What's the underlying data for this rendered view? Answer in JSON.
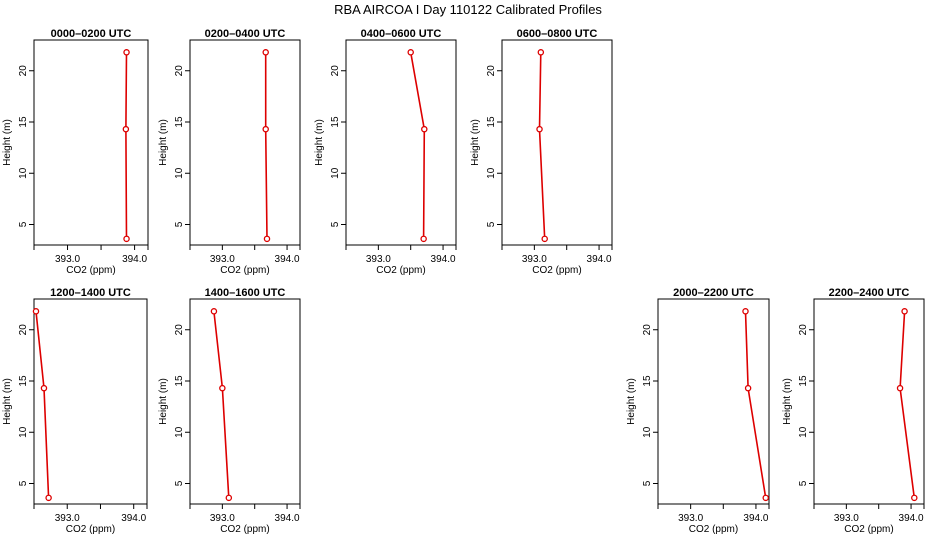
{
  "title": "RBA AIRCOA I  Day 110122  Calibrated Profiles",
  "chart_data": [
    {
      "type": "line",
      "title": "0000–0200 UTC",
      "xlabel": "CO2 (ppm)",
      "ylabel": "Height (m)",
      "xlim": [
        392.5,
        394.2
      ],
      "ylim": [
        3,
        23
      ],
      "x_ticks": [
        393.0,
        394.0
      ],
      "x_tick_labels": [
        "393.0",
        "394.0"
      ],
      "y_ticks": [
        5,
        10,
        15,
        20
      ],
      "grid": false,
      "series": [
        {
          "x": [
            393.88,
            393.87,
            393.88
          ],
          "y": [
            3.6,
            14.3,
            21.8
          ]
        }
      ]
    },
    {
      "type": "line",
      "title": "0200–0400 UTC",
      "xlabel": "CO2 (ppm)",
      "ylabel": "Height (m)",
      "xlim": [
        392.5,
        394.2
      ],
      "ylim": [
        3,
        23
      ],
      "x_ticks": [
        393.0,
        394.0
      ],
      "x_tick_labels": [
        "393.0",
        "394.0"
      ],
      "y_ticks": [
        5,
        10,
        15,
        20
      ],
      "grid": false,
      "series": [
        {
          "x": [
            393.69,
            393.67,
            393.67
          ],
          "y": [
            3.6,
            14.3,
            21.8
          ]
        }
      ]
    },
    {
      "type": "line",
      "title": "0400–0600 UTC",
      "xlabel": "CO2 (ppm)",
      "ylabel": "Height (m)",
      "xlim": [
        392.5,
        394.2
      ],
      "ylim": [
        3,
        23
      ],
      "x_ticks": [
        393.0,
        394.0
      ],
      "x_tick_labels": [
        "393.0",
        "394.0"
      ],
      "y_ticks": [
        5,
        10,
        15,
        20
      ],
      "grid": false,
      "series": [
        {
          "x": [
            393.7,
            393.71,
            393.5
          ],
          "y": [
            3.6,
            14.3,
            21.8
          ]
        }
      ]
    },
    {
      "type": "line",
      "title": "0600–0800 UTC",
      "xlabel": "CO2 (ppm)",
      "ylabel": "Height (m)",
      "xlim": [
        392.5,
        394.2
      ],
      "ylim": [
        3,
        23
      ],
      "x_ticks": [
        393.0,
        394.0
      ],
      "x_tick_labels": [
        "393.0",
        "394.0"
      ],
      "y_ticks": [
        5,
        10,
        15,
        20
      ],
      "grid": false,
      "series": [
        {
          "x": [
            393.16,
            393.08,
            393.1
          ],
          "y": [
            3.6,
            14.3,
            21.8
          ]
        }
      ]
    },
    {
      "type": "line",
      "title": "1200–1400 UTC",
      "xlabel": "CO2 (ppm)",
      "ylabel": "Height (m)",
      "xlim": [
        392.5,
        394.2
      ],
      "ylim": [
        3,
        23
      ],
      "x_ticks": [
        393.0,
        394.0
      ],
      "x_tick_labels": [
        "393.0",
        "394.0"
      ],
      "y_ticks": [
        5,
        10,
        15,
        20
      ],
      "grid": false,
      "series": [
        {
          "x": [
            392.72,
            392.65,
            392.53
          ],
          "y": [
            3.6,
            14.3,
            21.8
          ]
        }
      ]
    },
    {
      "type": "line",
      "title": "1400–1600 UTC",
      "xlabel": "CO2 (ppm)",
      "ylabel": "Height (m)",
      "xlim": [
        392.5,
        394.2
      ],
      "ylim": [
        3,
        23
      ],
      "x_ticks": [
        393.0,
        394.0
      ],
      "x_tick_labels": [
        "393.0",
        "394.0"
      ],
      "y_ticks": [
        5,
        10,
        15,
        20
      ],
      "grid": false,
      "series": [
        {
          "x": [
            393.1,
            393.0,
            392.87
          ],
          "y": [
            3.6,
            14.3,
            21.8
          ]
        }
      ]
    },
    {
      "type": "line",
      "title": "2000–2200 UTC",
      "xlabel": "CO2 (ppm)",
      "ylabel": "Height (m)",
      "xlim": [
        392.5,
        394.2
      ],
      "ylim": [
        3,
        23
      ],
      "x_ticks": [
        393.0,
        394.0
      ],
      "x_tick_labels": [
        "393.0",
        "394.0"
      ],
      "y_ticks": [
        5,
        10,
        15,
        20
      ],
      "grid": false,
      "series": [
        {
          "x": [
            394.15,
            393.88,
            393.84
          ],
          "y": [
            3.6,
            14.3,
            21.8
          ]
        }
      ]
    },
    {
      "type": "line",
      "title": "2200–2400 UTC",
      "xlabel": "CO2 (ppm)",
      "ylabel": "Height (m)",
      "xlim": [
        392.5,
        394.2
      ],
      "ylim": [
        3,
        23
      ],
      "x_ticks": [
        393.0,
        394.0
      ],
      "x_tick_labels": [
        "393.0",
        "394.0"
      ],
      "y_ticks": [
        5,
        10,
        15,
        20
      ],
      "grid": false,
      "series": [
        {
          "x": [
            394.05,
            393.83,
            393.9
          ],
          "y": [
            3.6,
            14.3,
            21.8
          ]
        }
      ]
    }
  ]
}
